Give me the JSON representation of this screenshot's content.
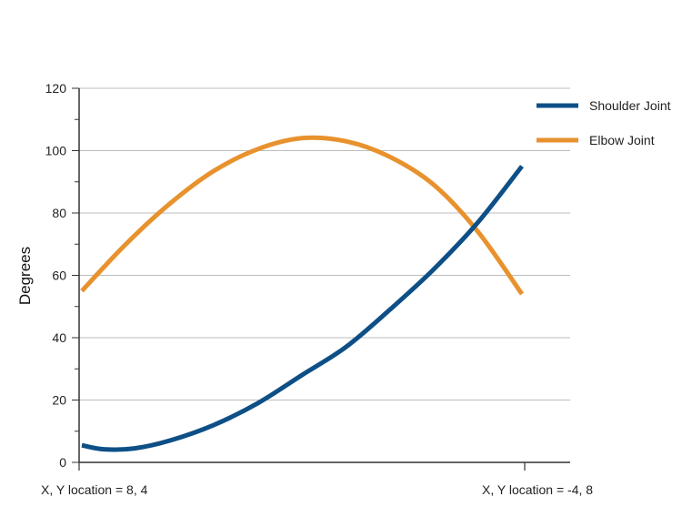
{
  "chart_data": {
    "type": "line",
    "ylabel": "Degrees",
    "ylim": [
      0,
      120
    ],
    "yticks": [
      0,
      20,
      40,
      60,
      80,
      100,
      120
    ],
    "x_start_label": "X, Y location = 8, 4",
    "x_end_label": "X, Y location = -4, 8",
    "grid": true,
    "legend_position": "top-right",
    "series": [
      {
        "name": "Shoulder Joint",
        "color": "#0d4f86",
        "points": [
          [
            0,
            5.5
          ],
          [
            0.05,
            4.2
          ],
          [
            0.12,
            4.5
          ],
          [
            0.2,
            7
          ],
          [
            0.3,
            12
          ],
          [
            0.4,
            19
          ],
          [
            0.5,
            28
          ],
          [
            0.6,
            37
          ],
          [
            0.7,
            49
          ],
          [
            0.8,
            62
          ],
          [
            0.9,
            77
          ],
          [
            1.0,
            95
          ]
        ]
      },
      {
        "name": "Elbow Joint",
        "color": "#e8922e",
        "points": [
          [
            0,
            55
          ],
          [
            0.1,
            70
          ],
          [
            0.2,
            83
          ],
          [
            0.3,
            93.5
          ],
          [
            0.4,
            100.5
          ],
          [
            0.5,
            104
          ],
          [
            0.6,
            103
          ],
          [
            0.7,
            98
          ],
          [
            0.8,
            89
          ],
          [
            0.9,
            74
          ],
          [
            1.0,
            54
          ]
        ]
      }
    ]
  }
}
